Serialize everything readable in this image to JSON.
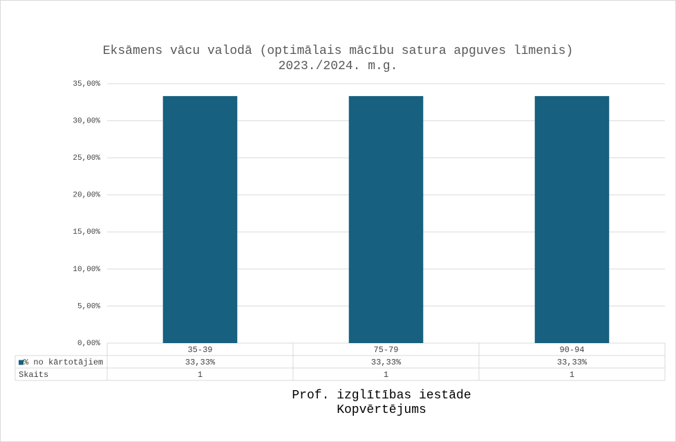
{
  "chart_data": {
    "type": "bar",
    "title": "Eksāmens vācu valodā (optimālais mācību satura apguves līmenis)",
    "subtitle": "2023./2024. m.g.",
    "categories": [
      "35-39",
      "75-79",
      "90-94"
    ],
    "series": [
      {
        "name": "% no kārtotājiem",
        "color": "#17607f",
        "values": [
          33.33,
          33.33,
          33.33
        ],
        "value_labels": [
          "33,33%",
          "33,33%",
          "33,33%"
        ]
      }
    ],
    "table_rows": [
      {
        "name": "Skaits",
        "values": [
          1,
          1,
          1
        ]
      }
    ],
    "ylim": [
      0,
      35
    ],
    "yticks": [
      {
        "value": 0,
        "label": "0,00%"
      },
      {
        "value": 5,
        "label": "5,00%"
      },
      {
        "value": 10,
        "label": "10,00%"
      },
      {
        "value": 15,
        "label": "15,00%"
      },
      {
        "value": 20,
        "label": "20,00%"
      },
      {
        "value": 25,
        "label": "25,00%"
      },
      {
        "value": 30,
        "label": "30,00%"
      },
      {
        "value": 35,
        "label": "35,00%"
      }
    ],
    "grid": true,
    "x_title": [
      "Prof. izglītības iestāde",
      "Kopvērtējums"
    ]
  }
}
